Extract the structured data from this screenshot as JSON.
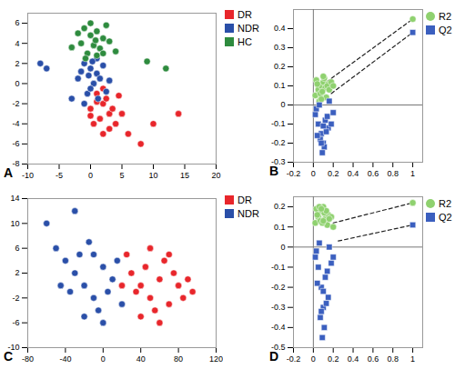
{
  "chart_data": [
    {
      "type": "scatter",
      "title": "A",
      "legend": "right",
      "grid": false,
      "xlim": [
        -10,
        20
      ],
      "xticks": [
        -10,
        -5,
        0,
        5,
        10,
        15,
        20
      ],
      "ylim": [
        -8,
        7
      ],
      "yticks": [
        -8,
        -6,
        -4,
        -2,
        0,
        2,
        4,
        6
      ],
      "series": [
        {
          "name": "DR",
          "color": "#e8262b",
          "marker": "circle",
          "x": [
            1,
            2,
            3,
            0,
            1.5,
            2.5,
            4,
            3.5,
            0.5,
            2,
            5,
            1,
            3,
            6,
            8,
            10,
            14,
            2,
            4.5,
            0
          ],
          "values": [
            -1,
            -2,
            -3,
            -2.5,
            -3.5,
            -1.5,
            -4,
            -2.5,
            -4,
            -5,
            -3,
            -1.8,
            -4.5,
            -5,
            -6,
            -4,
            -3,
            -0.5,
            -1.2,
            -3.2
          ]
        },
        {
          "name": "NDR",
          "color": "#2a4fa8",
          "marker": "circle",
          "x": [
            -1,
            0,
            1,
            -2,
            0.5,
            -0.5,
            1.5,
            2,
            -1.5,
            0,
            1,
            -8,
            -7,
            -3,
            2.5,
            0.3,
            -0.3,
            1.2,
            3,
            -1
          ],
          "values": [
            2,
            1.5,
            1,
            0.5,
            0,
            -1,
            0.5,
            1.8,
            1.2,
            -0.5,
            2.5,
            2,
            1.5,
            -1.5,
            -0.8,
            2.2,
            0.8,
            -1.5,
            0.3,
            -2
          ]
        },
        {
          "name": "HC",
          "color": "#2e8b3e",
          "marker": "circle",
          "x": [
            -2,
            -1,
            0,
            1,
            2,
            0.5,
            -1.5,
            1.5,
            3,
            -0.5,
            2.5,
            0,
            1,
            4,
            -3,
            12,
            9,
            0.8,
            -0.8,
            2
          ],
          "values": [
            5,
            5.5,
            4.8,
            5.2,
            4.5,
            3.8,
            4,
            3.5,
            4.2,
            3,
            5.8,
            6,
            2.8,
            3.2,
            3.6,
            1.5,
            2.2,
            4.3,
            2.5,
            3
          ]
        }
      ]
    },
    {
      "type": "permutation",
      "title": "B",
      "legend": "right",
      "grid": false,
      "xlim": [
        -0.2,
        1.1
      ],
      "xticks": [
        -0.2,
        0,
        0.2,
        0.4,
        0.6,
        0.8,
        1
      ],
      "ylim": [
        -0.3,
        0.5
      ],
      "yticks": [
        -0.3,
        -0.2,
        -0.1,
        0,
        0.1,
        0.2,
        0.3,
        0.4
      ],
      "series": [
        {
          "name": "R2",
          "color": "#8fd16f",
          "marker": "circle",
          "x": [
            0.02,
            0.05,
            0.08,
            0.1,
            0.12,
            0.15,
            0.03,
            0.07,
            0.11,
            0.14,
            0.18,
            0.06,
            0.09,
            0.13,
            0.16,
            0.04,
            0.2,
            0.1,
            0.08,
            1
          ],
          "values": [
            0.05,
            0.08,
            0.1,
            0.12,
            0.09,
            0.11,
            0.13,
            0.06,
            0.14,
            0.1,
            0.12,
            0.02,
            0.07,
            0.04,
            0.08,
            0.11,
            0.1,
            0.15,
            0.03,
            0.45
          ],
          "fit": {
            "x": [
              0.13,
              1
            ],
            "values": [
              0.12,
              0.45
            ],
            "line_style": "dashed"
          }
        },
        {
          "name": "Q2",
          "color": "#3b5fbf",
          "marker": "square",
          "x": [
            0.02,
            0.05,
            0.08,
            0.1,
            0.12,
            0.15,
            0.03,
            0.07,
            0.11,
            0.14,
            0.18,
            0.06,
            0.09,
            0.13,
            0.16,
            0.04,
            0.2,
            0.1,
            0.08,
            1
          ],
          "values": [
            -0.05,
            -0.1,
            -0.15,
            -0.2,
            -0.08,
            -0.12,
            -0.02,
            -0.18,
            -0.22,
            -0.06,
            -0.1,
            0,
            -0.25,
            -0.14,
            0.02,
            -0.16,
            -0.04,
            -0.11,
            -0.2,
            0.38
          ],
          "fit": {
            "x": [
              0.18,
              1
            ],
            "values": [
              0.06,
              0.38
            ],
            "line_style": "dashed"
          }
        }
      ]
    },
    {
      "type": "scatter",
      "title": "C",
      "legend": "right",
      "grid": false,
      "xlim": [
        -80,
        120
      ],
      "xticks": [
        -80,
        -40,
        0,
        40,
        80,
        120
      ],
      "ylim": [
        -10,
        14
      ],
      "yticks": [
        -10,
        -6,
        -2,
        2,
        6,
        10,
        14
      ],
      "series": [
        {
          "name": "DR",
          "color": "#e8262b",
          "marker": "circle",
          "x": [
            30,
            40,
            50,
            60,
            70,
            80,
            45,
            55,
            65,
            35,
            75,
            85,
            90,
            25,
            50,
            60,
            40,
            70,
            95,
            20
          ],
          "values": [
            2,
            0,
            -2,
            1,
            -3,
            0,
            3,
            -4,
            4,
            -1,
            2,
            -2,
            1,
            5,
            6,
            -6,
            -5,
            5,
            -1,
            0
          ]
        },
        {
          "name": "NDR",
          "color": "#2a4fa8",
          "marker": "circle",
          "x": [
            -40,
            -30,
            -20,
            -10,
            0,
            10,
            -50,
            -35,
            -25,
            -15,
            -5,
            5,
            -45,
            -20,
            15,
            -60,
            -30,
            0,
            -10,
            20
          ],
          "values": [
            4,
            2,
            0,
            -2,
            3,
            1,
            6,
            -1,
            5,
            7,
            -4,
            -1,
            0,
            -5,
            4,
            10,
            12,
            -6,
            5,
            -3
          ]
        }
      ]
    },
    {
      "type": "permutation",
      "title": "D",
      "legend": "right",
      "grid": false,
      "xlim": [
        -0.2,
        1.1
      ],
      "xticks": [
        -0.2,
        0,
        0.2,
        0.4,
        0.6,
        0.8,
        1
      ],
      "ylim": [
        -0.5,
        0.25
      ],
      "yticks": [
        -0.5,
        -0.4,
        -0.3,
        -0.2,
        -0.1,
        0,
        0.1,
        0.2
      ],
      "series": [
        {
          "name": "R2",
          "color": "#8fd16f",
          "marker": "circle",
          "x": [
            0.02,
            0.05,
            0.08,
            0.1,
            0.12,
            0.15,
            0.03,
            0.07,
            0.11,
            0.14,
            0.18,
            0.06,
            0.09,
            0.13,
            0.16,
            0.04,
            0.2,
            0.1,
            0.08,
            1
          ],
          "values": [
            0.12,
            0.15,
            0.18,
            0.2,
            0.14,
            0.16,
            0.19,
            0.13,
            0.17,
            0.11,
            0.15,
            0.2,
            0.12,
            0.18,
            0.14,
            0.16,
            0.1,
            0.13,
            0.19,
            0.22
          ],
          "fit": {
            "x": [
              0.2,
              1
            ],
            "values": [
              0.12,
              0.22
            ],
            "line_style": "dashed"
          }
        },
        {
          "name": "Q2",
          "color": "#3b5fbf",
          "marker": "square",
          "x": [
            0.02,
            0.05,
            0.08,
            0.1,
            0.12,
            0.15,
            0.03,
            0.07,
            0.11,
            0.14,
            0.18,
            0.06,
            0.09,
            0.13,
            0.16,
            0.04,
            0.2,
            0.1,
            0.08,
            1
          ],
          "values": [
            -0.05,
            -0.1,
            -0.2,
            -0.3,
            -0.15,
            -0.25,
            -0.02,
            -0.35,
            -0.4,
            -0.12,
            -0.08,
            0.02,
            -0.45,
            -0.28,
            0,
            -0.18,
            -0.05,
            -0.22,
            -0.32,
            0.11
          ],
          "fit": {
            "x": [
              0.25,
              1
            ],
            "values": [
              0.03,
              0.11
            ],
            "line_style": "dashed"
          }
        }
      ]
    }
  ]
}
